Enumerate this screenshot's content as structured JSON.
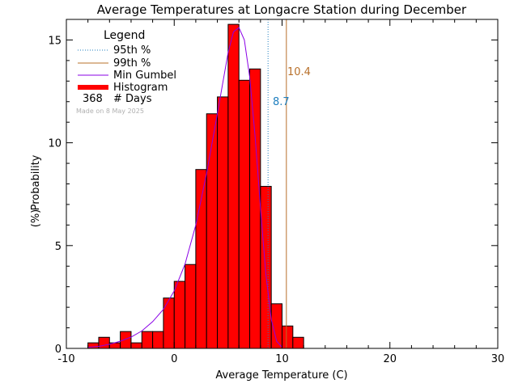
{
  "chart_data": {
    "type": "bar",
    "title": "Average Temperatures at Longacre Station during December",
    "xlabel": "Average Temperature (C)",
    "ylabel": "Probability",
    "ylabel_unit": "(%)",
    "xlim": [
      -10,
      30
    ],
    "ylim": [
      0,
      16
    ],
    "x_ticks": [
      -10,
      0,
      10,
      20,
      30
    ],
    "y_ticks": [
      0,
      5,
      10,
      15
    ],
    "bin_width": 1,
    "bins": [
      {
        "x0": -8,
        "value": 0.27
      },
      {
        "x0": -7,
        "value": 0.54
      },
      {
        "x0": -6,
        "value": 0.27
      },
      {
        "x0": -5,
        "value": 0.82
      },
      {
        "x0": -4,
        "value": 0.27
      },
      {
        "x0": -3,
        "value": 0.82
      },
      {
        "x0": -2,
        "value": 0.82
      },
      {
        "x0": -1,
        "value": 2.45
      },
      {
        "x0": 0,
        "value": 3.26
      },
      {
        "x0": 1,
        "value": 4.08
      },
      {
        "x0": 2,
        "value": 8.7
      },
      {
        "x0": 3,
        "value": 11.41
      },
      {
        "x0": 4,
        "value": 12.23
      },
      {
        "x0": 5,
        "value": 15.76
      },
      {
        "x0": 6,
        "value": 13.04
      },
      {
        "x0": 7,
        "value": 13.59
      },
      {
        "x0": 8,
        "value": 7.88
      },
      {
        "x0": 9,
        "value": 2.17
      },
      {
        "x0": 10,
        "value": 1.09
      },
      {
        "x0": 11,
        "value": 0.54
      }
    ],
    "gumbel_curve": {
      "x": [
        -8,
        -7,
        -6,
        -5,
        -4,
        -3,
        -2,
        -1,
        0,
        1,
        2,
        3,
        4,
        5,
        5.5,
        6,
        6.5,
        7,
        7.5,
        8,
        8.5,
        9,
        9.5,
        10
      ],
      "y": [
        0.05,
        0.1,
        0.2,
        0.35,
        0.55,
        0.85,
        1.3,
        1.9,
        2.8,
        4.1,
        6.0,
        8.5,
        11.4,
        14.4,
        15.4,
        15.6,
        15.0,
        13.2,
        10.3,
        6.8,
        3.6,
        1.4,
        0.35,
        0.05
      ]
    },
    "percentile_95": {
      "value": 8.7,
      "label": "8.7",
      "color": "#1f7fbf"
    },
    "percentile_99": {
      "value": 10.4,
      "label": "10.4",
      "color": "#b8702a"
    },
    "legend": {
      "title": "Legend",
      "items": [
        {
          "label": "95th %",
          "style": "dotted",
          "color": "#1f7fbf"
        },
        {
          "label": "99th %",
          "style": "solid",
          "color": "#b8702a"
        },
        {
          "label": "Min Gumbel",
          "style": "solid",
          "color": "#8a00e6"
        },
        {
          "label": "Histogram",
          "style": "thick",
          "color": "#ff0000"
        }
      ],
      "days_count": "368",
      "days_label": "# Days",
      "placement": "top-left"
    },
    "watermark": "Made on 8 May 2025",
    "colors": {
      "bar_fill": "#ff0000",
      "bar_stroke": "#000000",
      "curve": "#8a00e6"
    }
  }
}
